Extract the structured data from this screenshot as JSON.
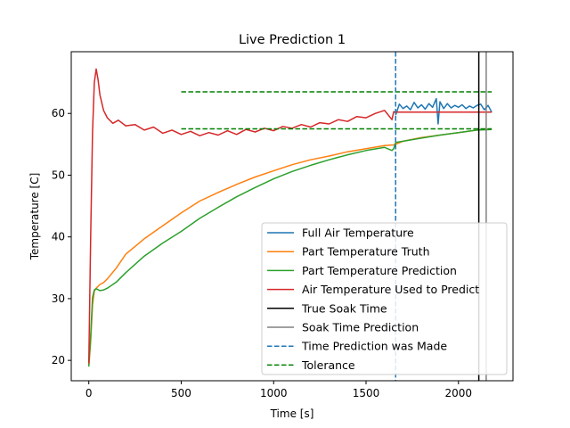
{
  "chart_data": {
    "type": "line",
    "title": "Live Prediction 1",
    "xlabel": "Time [s]",
    "ylabel": "Temperature [C]",
    "xlim": [
      -95,
      2295
    ],
    "ylim": [
      16.7,
      70.0
    ],
    "xticks": [
      0,
      500,
      1000,
      1500,
      2000
    ],
    "yticks": [
      20,
      30,
      40,
      50,
      60
    ],
    "grid": false,
    "legend_position": "lower right",
    "series": [
      {
        "name": "Full Air Temperature",
        "color": "#1f77b4",
        "style": "solid",
        "x": [
          1660,
          1680,
          1700,
          1720,
          1740,
          1760,
          1780,
          1800,
          1820,
          1840,
          1860,
          1880,
          1890,
          1900,
          1920,
          1940,
          1960,
          1980,
          2000,
          2020,
          2040,
          2060,
          2080,
          2100,
          2120,
          2140,
          2160,
          2180
        ],
        "y": [
          59.7,
          61.5,
          60.8,
          61.2,
          60.6,
          61.8,
          60.9,
          61.4,
          60.7,
          61.6,
          61.0,
          62.4,
          58.3,
          61.9,
          60.8,
          61.6,
          60.9,
          61.3,
          61.0,
          61.4,
          60.8,
          61.2,
          60.9,
          61.3,
          61.5,
          60.6,
          61.3,
          60.2
        ]
      },
      {
        "name": "Part Temperature Truth",
        "color": "#ff7f0e",
        "style": "solid",
        "x": [
          0,
          10,
          20,
          30,
          40,
          50,
          60,
          80,
          100,
          150,
          200,
          300,
          400,
          500,
          600,
          700,
          800,
          900,
          1000,
          1100,
          1200,
          1300,
          1400,
          1500,
          1600,
          1650,
          1700,
          1800,
          1900,
          2000,
          2100,
          2180
        ],
        "y": [
          19,
          23,
          29,
          31.2,
          31.7,
          32.0,
          32.3,
          32.6,
          33.2,
          35.0,
          37.2,
          39.7,
          41.8,
          43.9,
          45.8,
          47.2,
          48.5,
          49.7,
          50.7,
          51.7,
          52.5,
          53.1,
          53.8,
          54.3,
          54.8,
          54.9,
          55.5,
          56.1,
          56.5,
          56.9,
          57.3,
          57.5
        ]
      },
      {
        "name": "Part Temperature Prediction",
        "color": "#2ca02c",
        "style": "solid",
        "x": [
          0,
          10,
          20,
          30,
          40,
          60,
          80,
          100,
          150,
          200,
          300,
          400,
          500,
          600,
          700,
          800,
          900,
          1000,
          1100,
          1200,
          1300,
          1400,
          1500,
          1600,
          1640,
          1650,
          1660,
          1700,
          1800,
          1900,
          2000,
          2100,
          2180
        ],
        "y": [
          19,
          24,
          30.2,
          31.4,
          31.6,
          31.3,
          31.4,
          31.7,
          32.7,
          34.2,
          36.9,
          39.0,
          40.9,
          43.0,
          44.8,
          46.5,
          48.0,
          49.4,
          50.6,
          51.6,
          52.5,
          53.3,
          54.0,
          54.5,
          54.0,
          54.3,
          55.3,
          55.5,
          56.0,
          56.5,
          56.9,
          57.3,
          57.4
        ]
      },
      {
        "name": "Air Temperature Used to Predict",
        "color": "#d62728",
        "style": "solid",
        "x": [
          0,
          10,
          20,
          30,
          40,
          50,
          60,
          80,
          100,
          130,
          160,
          200,
          250,
          300,
          350,
          400,
          450,
          500,
          550,
          600,
          650,
          700,
          750,
          800,
          850,
          900,
          950,
          1000,
          1050,
          1100,
          1150,
          1200,
          1250,
          1300,
          1350,
          1400,
          1450,
          1500,
          1550,
          1600,
          1640,
          1650,
          1660,
          1700,
          1800,
          1900,
          2000,
          2100,
          2180
        ],
        "y": [
          19.5,
          40,
          57,
          65,
          67.2,
          65.5,
          63,
          60.5,
          59.3,
          58.4,
          58.9,
          58.0,
          58.2,
          57.3,
          57.8,
          56.8,
          57.3,
          56.6,
          57.1,
          56.4,
          56.9,
          56.5,
          57.2,
          56.6,
          57.4,
          57.0,
          57.6,
          57.2,
          57.9,
          57.6,
          58.2,
          57.8,
          58.5,
          58.3,
          59.0,
          58.7,
          59.5,
          59.3,
          60.0,
          60.5,
          59.0,
          60.3,
          60.2,
          60.2,
          60.2,
          60.2,
          60.2,
          60.2,
          60.2
        ]
      },
      {
        "name": "True Soak Time",
        "color": "#000000",
        "style": "vline",
        "x": [
          2110
        ]
      },
      {
        "name": "Soak Time Prediction",
        "color": "#808080",
        "style": "vline",
        "x": [
          2150
        ]
      },
      {
        "name": "Time Prediction was Made",
        "color": "#1f77b4",
        "style": "vline-dashed",
        "x": [
          1660
        ]
      },
      {
        "name": "Tolerance",
        "color": "#008000",
        "style": "hline-dashed",
        "x": [
          500,
          2180
        ],
        "y": [
          63.5,
          57.5
        ]
      }
    ]
  }
}
